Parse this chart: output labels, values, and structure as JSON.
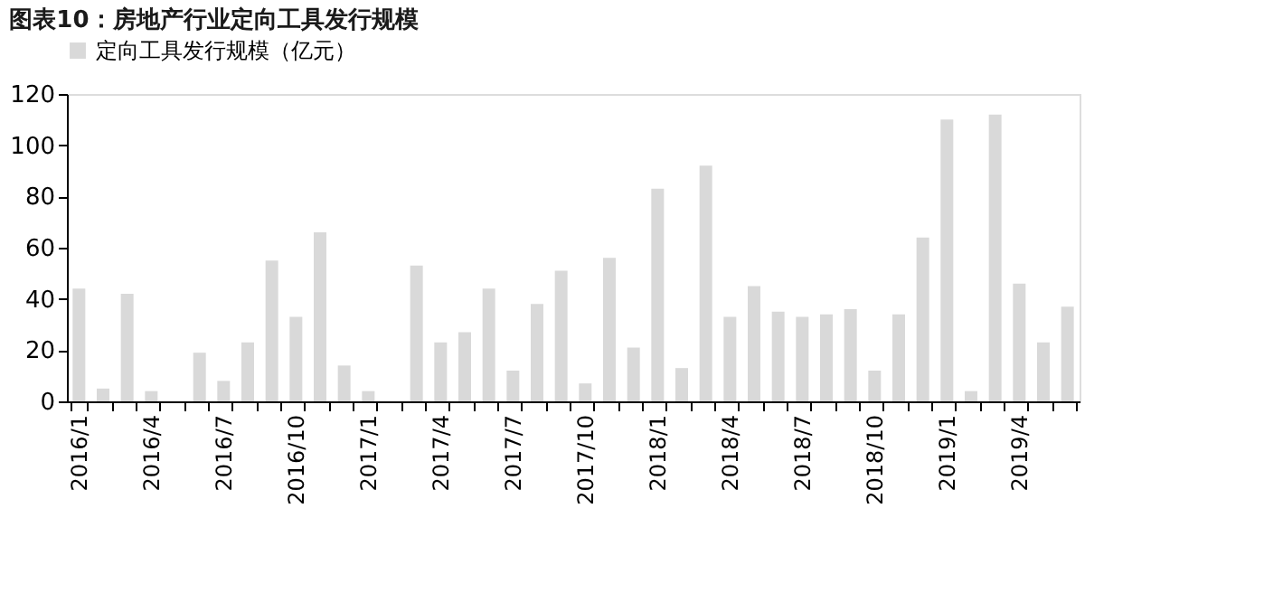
{
  "chart_data": {
    "type": "bar",
    "title": "图表10：房地产行业定向工具发行规模",
    "categories": [
      "2016/1",
      null,
      null,
      "2016/4",
      null,
      null,
      "2016/7",
      null,
      null,
      "2016/10",
      null,
      null,
      "2017/1",
      null,
      null,
      "2017/4",
      null,
      null,
      "2017/7",
      null,
      null,
      "2017/10",
      null,
      null,
      "2018/1",
      null,
      null,
      "2018/4",
      null,
      null,
      "2018/7",
      null,
      null,
      "2018/10",
      null,
      null,
      "2019/1",
      null,
      null,
      "2019/4",
      null,
      null
    ],
    "series": [
      {
        "name": "定向工具发行规模（亿元）",
        "color": "#d9d9d9",
        "values": [
          44,
          5,
          42,
          4,
          null,
          19,
          8,
          23,
          55,
          33,
          66,
          14,
          4,
          null,
          53,
          23,
          27,
          44,
          12,
          38,
          51,
          7,
          56,
          21,
          83,
          13,
          92,
          33,
          45,
          35,
          33,
          34,
          36,
          12,
          34,
          64,
          110,
          4,
          112,
          46,
          23,
          37
        ]
      }
    ],
    "ylim": [
      0,
      120
    ],
    "yticks": [
      0,
      20,
      40,
      60,
      80,
      100,
      120
    ],
    "grid": false,
    "legend": "top"
  }
}
